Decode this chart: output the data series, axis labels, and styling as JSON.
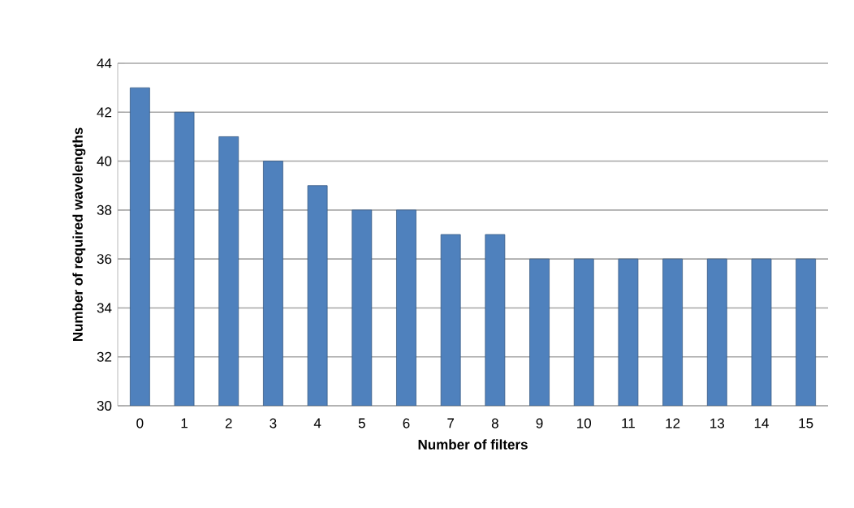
{
  "chart_data": {
    "type": "bar",
    "xlabel": "Number of filters",
    "ylabel": "Number of required wavelengths",
    "categories": [
      "0",
      "1",
      "2",
      "3",
      "4",
      "5",
      "6",
      "7",
      "8",
      "9",
      "10",
      "11",
      "12",
      "13",
      "14",
      "15"
    ],
    "values": [
      43,
      42,
      41,
      40,
      39,
      38,
      38,
      37,
      37,
      36,
      36,
      36,
      36,
      36,
      36,
      36
    ],
    "color": "#4f81bd",
    "ylim": [
      30,
      44
    ],
    "yticks": [
      30,
      32,
      34,
      36,
      38,
      40,
      42,
      44
    ],
    "grid": "y"
  }
}
